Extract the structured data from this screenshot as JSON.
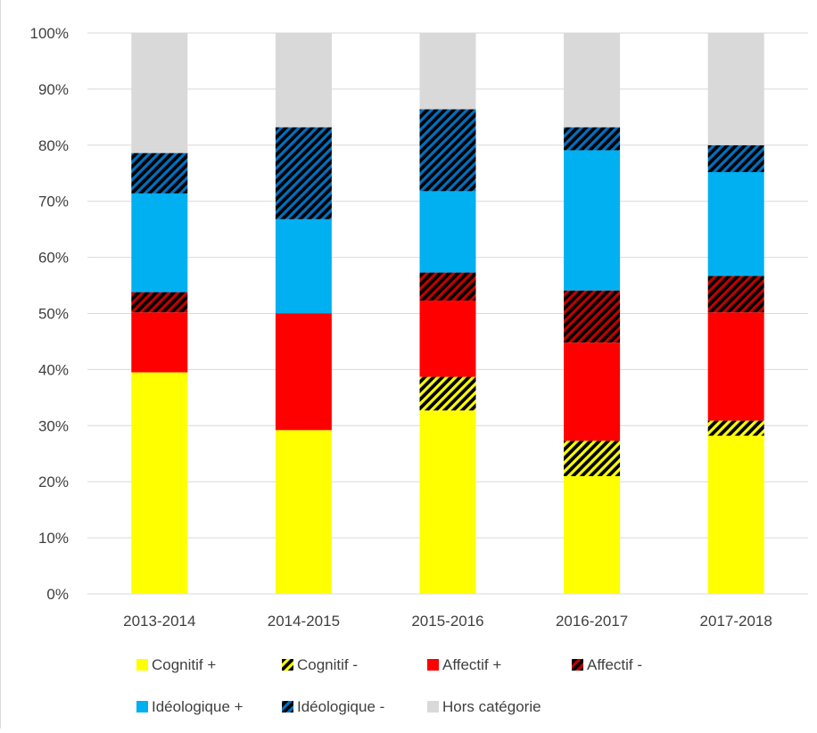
{
  "chart_data": {
    "type": "bar",
    "stacked": true,
    "percent_axis": true,
    "categories": [
      "2013-2014",
      "2014-2015",
      "2015-2016",
      "2016-2017",
      "2017-2018"
    ],
    "ylim": [
      0,
      100
    ],
    "yticks": [
      0,
      10,
      20,
      30,
      40,
      50,
      60,
      70,
      80,
      90,
      100
    ],
    "ytick_labels": [
      "0%",
      "10%",
      "20%",
      "30%",
      "40%",
      "50%",
      "60%",
      "70%",
      "80%",
      "90%",
      "100%"
    ],
    "grid": true,
    "legend_position": "bottom",
    "title": "",
    "xlabel": "",
    "ylabel": "",
    "series": [
      {
        "name": "Cognitif +",
        "color": "#ffff00",
        "pattern": "solid",
        "values": [
          39.5,
          29.2,
          32.7,
          21.0,
          28.2
        ]
      },
      {
        "name": "Cognitif -",
        "color": "#ffff00",
        "pattern": "hatched",
        "values": [
          0.0,
          0.0,
          6.0,
          6.3,
          2.7
        ]
      },
      {
        "name": "Affectif +",
        "color": "#ff0000",
        "pattern": "solid",
        "values": [
          10.7,
          20.8,
          13.6,
          17.5,
          19.3
        ]
      },
      {
        "name": "Affectif -",
        "color": "#c00000",
        "pattern": "hatched",
        "values": [
          3.6,
          0.0,
          5.0,
          9.3,
          6.5
        ]
      },
      {
        "name": "Idéologique +",
        "color": "#00b0f0",
        "pattern": "solid",
        "values": [
          17.6,
          16.8,
          14.5,
          25.0,
          18.5
        ]
      },
      {
        "name": "Idéologique -",
        "color": "#0070c0",
        "pattern": "hatched",
        "values": [
          7.2,
          16.4,
          14.6,
          4.1,
          4.8
        ]
      },
      {
        "name": "Hors catégorie",
        "color": "#d9d9d9",
        "pattern": "solid",
        "values": [
          21.4,
          16.8,
          13.6,
          16.8,
          20.0
        ]
      }
    ]
  }
}
